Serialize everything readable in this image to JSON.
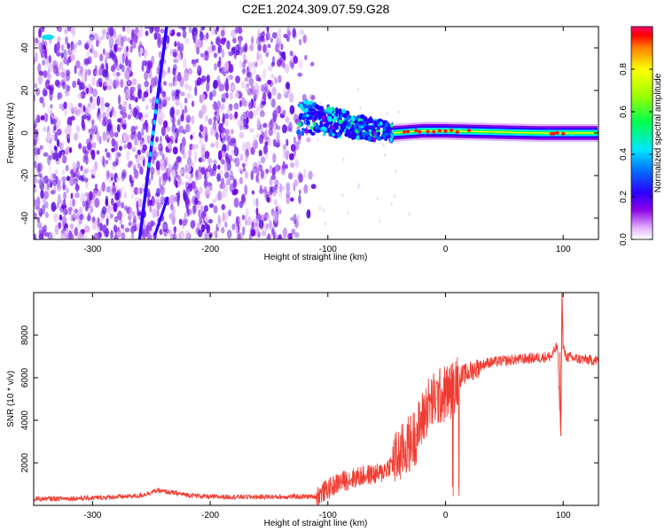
{
  "title": "C2E1.2024.309.07.59.G28",
  "chart_data": [
    {
      "type": "heatmap",
      "xlabel": "Height of straight line (km)",
      "ylabel": "Frequency (Hz)",
      "xlim": [
        -350,
        130
      ],
      "ylim": [
        -50,
        50
      ],
      "x_ticks": [
        -300,
        -200,
        -100,
        0,
        100
      ],
      "y_ticks": [
        -40,
        -20,
        0,
        20,
        40
      ],
      "colorbar": {
        "label": "Normalized spectral amplitude",
        "range": [
          0,
          1
        ],
        "ticks": [
          "0.0",
          "0.2",
          "0.4",
          "0.6",
          "0.8"
        ],
        "tick_values": [
          0,
          0.2,
          0.4,
          0.6,
          0.8
        ]
      },
      "features": {
        "noise_region_x": [
          -350,
          -110
        ],
        "tilted_line_1": [
          [
            -260,
            -50
          ],
          [
            -237,
            50
          ]
        ],
        "tilted_line_2": [
          [
            -247,
            -48
          ],
          [
            -236,
            -30
          ]
        ],
        "speckle_at": [
          -338,
          45
        ],
        "blob": [
          [
            -125,
            8
          ],
          [
            -100,
            6
          ],
          [
            -80,
            4
          ],
          [
            -60,
            2
          ],
          [
            -45,
            0
          ]
        ],
        "band_x": [
          -45,
          130
        ],
        "band_center": [
          [
            -45,
            0
          ],
          [
            -20,
            1
          ],
          [
            0,
            1
          ],
          [
            40,
            0.5
          ],
          [
            80,
            0
          ],
          [
            130,
            0
          ]
        ]
      },
      "colors": [
        "#f6e8f6",
        "#8a00e6",
        "#2200ff",
        "#00e5ff",
        "#00ff5a",
        "#ffff00",
        "#ff0000"
      ]
    },
    {
      "type": "line",
      "xlabel": "Height of straight line (km)",
      "ylabel": "SNR (10 * v/v)",
      "xlim": [
        -350,
        130
      ],
      "ylim": [
        0,
        10000
      ],
      "x_ticks": [
        -300,
        -200,
        -100,
        0,
        100
      ],
      "y_ticks": [
        2000,
        4000,
        6000,
        8000
      ],
      "color": "#f03c32",
      "series": [
        {
          "x": [
            -350,
            -300,
            -260,
            -245,
            -220,
            -200,
            -150,
            -110,
            -90,
            -70,
            -55,
            -45,
            -35,
            -25,
            -15,
            -8,
            -2,
            5,
            10,
            18,
            25,
            35,
            50,
            70,
            90,
            95,
            98,
            99,
            100,
            102,
            110,
            130
          ],
          "y": [
            300,
            350,
            450,
            700,
            500,
            400,
            400,
            420,
            1100,
            1400,
            1500,
            2000,
            2600,
            3300,
            4700,
            5000,
            5200,
            5400,
            6000,
            6200,
            6400,
            6700,
            6800,
            6900,
            7000,
            7500,
            3300,
            9900,
            7500,
            7000,
            6900,
            6800
          ]
        }
      ]
    }
  ]
}
